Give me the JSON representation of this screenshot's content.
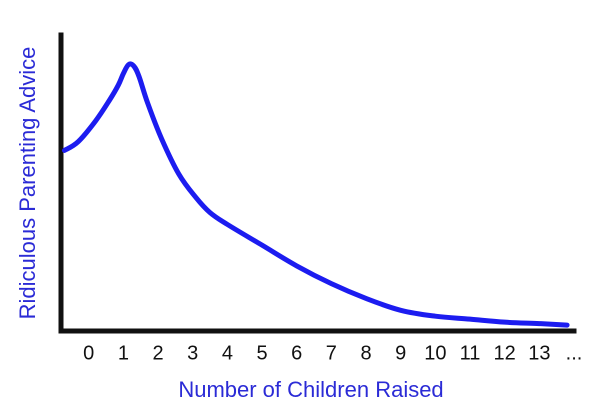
{
  "chart_data": {
    "type": "line",
    "title": "",
    "xlabel": "Number of Children Raised",
    "ylabel": "Ridiculous Parenting Advice",
    "tick_labels": [
      "0",
      "1",
      "2",
      "3",
      "4",
      "5",
      "6",
      "7",
      "8",
      "9",
      "10",
      "11",
      "12",
      "13",
      "..."
    ],
    "x_range": [
      -0.8,
      14
    ],
    "y_range": [
      0,
      1
    ],
    "grid": false,
    "legend": "none",
    "series": [
      {
        "color": "#1c1cf0",
        "points": [
          [
            -0.7,
            0.61
          ],
          [
            -0.3,
            0.64
          ],
          [
            0.2,
            0.71
          ],
          [
            0.6,
            0.78
          ],
          [
            0.85,
            0.83
          ],
          [
            1.0,
            0.87
          ],
          [
            1.15,
            0.9
          ],
          [
            1.3,
            0.895
          ],
          [
            1.45,
            0.86
          ],
          [
            1.7,
            0.77
          ],
          [
            2.1,
            0.65
          ],
          [
            2.6,
            0.53
          ],
          [
            3.1,
            0.45
          ],
          [
            3.5,
            0.4
          ],
          [
            4.0,
            0.36
          ],
          [
            5.0,
            0.29
          ],
          [
            6.0,
            0.22
          ],
          [
            7.0,
            0.16
          ],
          [
            8.0,
            0.11
          ],
          [
            9.0,
            0.07
          ],
          [
            10.0,
            0.05
          ],
          [
            11.0,
            0.04
          ],
          [
            12.0,
            0.03
          ],
          [
            13.0,
            0.025
          ],
          [
            13.8,
            0.02
          ]
        ]
      }
    ],
    "axis_color": "#111111",
    "label_color": "#2b2bd6"
  }
}
